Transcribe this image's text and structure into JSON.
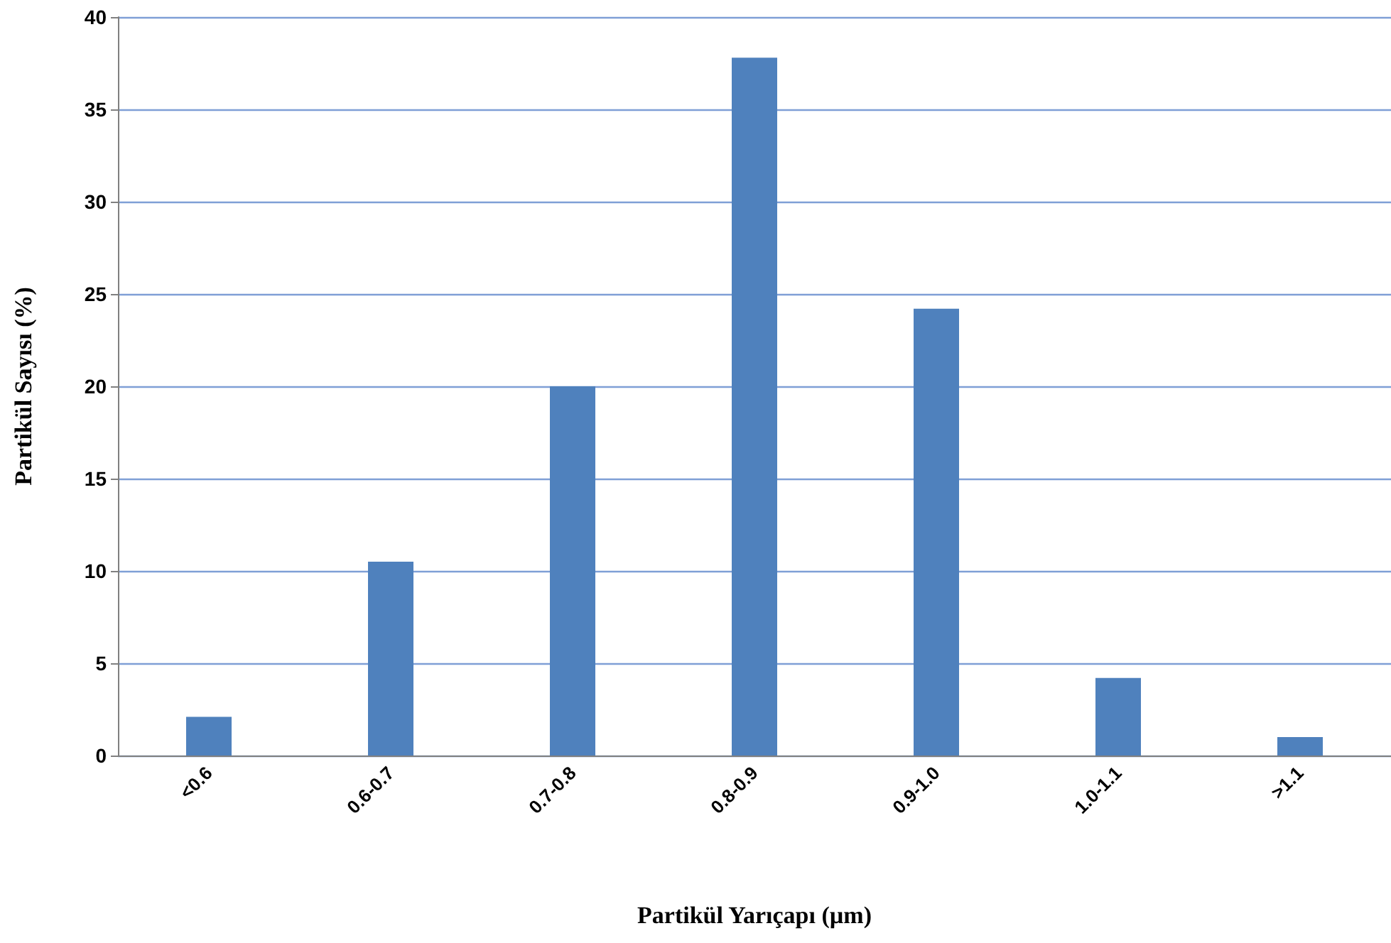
{
  "chart_data": {
    "type": "bar",
    "xlabel": "Partikül Yarıçapı (µm)",
    "ylabel": "Partikül Sayısı (%)",
    "categories": [
      "<0.6",
      "0.6-0.7",
      "0.7-0.8",
      "0.8-0.9",
      "0.9-1.0",
      "1.0-1.1",
      ">1.1"
    ],
    "values": [
      2.1,
      10.5,
      20,
      37.8,
      24.2,
      4.2,
      1.0
    ],
    "color": "#4f81bd",
    "ylim": [
      0,
      40
    ],
    "yticks": [
      0,
      5,
      10,
      15,
      20,
      25,
      30,
      35,
      40
    ],
    "grid": "y"
  }
}
